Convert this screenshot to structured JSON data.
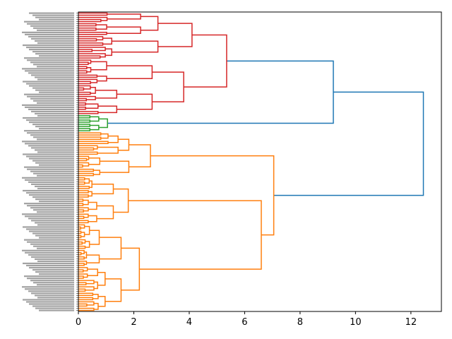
{
  "chart_data": {
    "type": "dendrogram",
    "orientation": "horizontal",
    "title": "",
    "xlabel": "",
    "ylabel": "",
    "xlim": [
      0,
      13.1
    ],
    "x_ticks": [
      0,
      2,
      4,
      6,
      8,
      10,
      12
    ],
    "x_tick_labels": [
      "0",
      "2",
      "4",
      "6",
      "8",
      "10",
      "12"
    ],
    "leaf_count": 140,
    "leaf_labels_legible": false,
    "grid": false,
    "link_colors": {
      "root": "#1f77b4",
      "cluster_orange": "#ff7f0e",
      "cluster_green": "#2ca02c",
      "cluster_red": "#d62728"
    },
    "clusters": [
      {
        "color": "#ff7f0e",
        "leaf_span": [
          0,
          83
        ],
        "merge_height": 7.05
      },
      {
        "color": "#2ca02c",
        "leaf_span": [
          84,
          91
        ],
        "merge_height": 1.05
      },
      {
        "color": "#d62728",
        "leaf_span": [
          92,
          139
        ],
        "merge_height": 5.35
      }
    ],
    "merges": [
      {
        "id": "A",
        "height": 2.2,
        "left": [
          0,
          20
        ],
        "right": [
          21,
          40
        ]
      },
      {
        "id": "B",
        "height": 1.8,
        "left": [
          41,
          52
        ],
        "right": [
          53,
          62
        ]
      },
      {
        "id": "C",
        "height": 2.6,
        "left": [
          63,
          72
        ],
        "right": [
          73,
          83
        ]
      },
      {
        "id": "D",
        "height": 6.6,
        "left": "A",
        "right": "B"
      },
      {
        "id": "E",
        "height": 7.05,
        "left": "D",
        "right": "C"
      },
      {
        "id": "F",
        "height": 1.05,
        "left": [
          84,
          87
        ],
        "right": [
          88,
          91
        ]
      },
      {
        "id": "G",
        "height": 3.8,
        "left": [
          92,
          105
        ],
        "right": [
          106,
          117
        ]
      },
      {
        "id": "H",
        "height": 4.1,
        "left": [
          118,
          128
        ],
        "right": [
          129,
          139
        ]
      },
      {
        "id": "I",
        "height": 5.35,
        "left": "G",
        "right": "H"
      },
      {
        "id": "J",
        "height": 9.2,
        "left": "F",
        "right": "I"
      },
      {
        "id": "K",
        "height": 12.45,
        "left": "E",
        "right": "J"
      }
    ]
  }
}
